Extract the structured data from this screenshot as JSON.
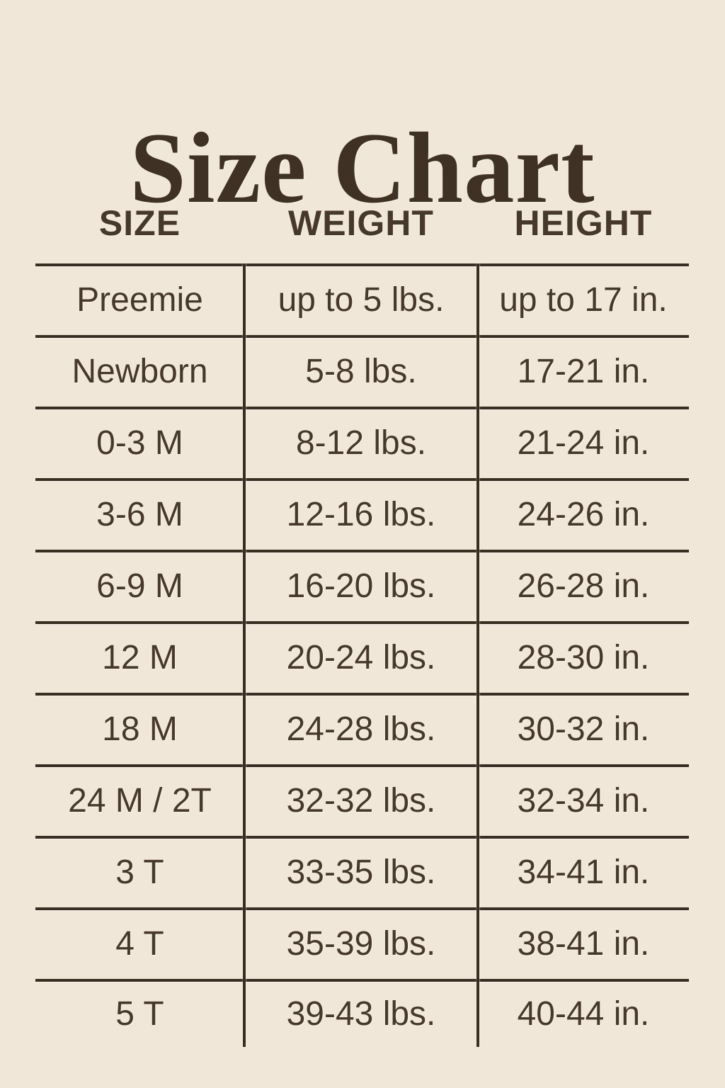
{
  "colors": {
    "background": "#f1e7d8",
    "text": "#46382a",
    "title": "#3f3124",
    "line": "#3a2d21"
  },
  "chart_data": {
    "type": "table",
    "title": "Size Chart",
    "columns": [
      "SIZE",
      "WEIGHT",
      "HEIGHT"
    ],
    "rows": [
      [
        "Preemie",
        "up to 5 lbs.",
        "up to 17 in."
      ],
      [
        "Newborn",
        "5-8 lbs.",
        "17-21 in."
      ],
      [
        "0-3 M",
        "8-12 lbs.",
        "21-24 in."
      ],
      [
        "3-6 M",
        "12-16 lbs.",
        "24-26 in."
      ],
      [
        "6-9 M",
        "16-20 lbs.",
        "26-28 in."
      ],
      [
        "12 M",
        "20-24 lbs.",
        "28-30 in."
      ],
      [
        "18 M",
        "24-28 lbs.",
        "30-32 in."
      ],
      [
        "24 M / 2T",
        "32-32 lbs.",
        "32-34 in."
      ],
      [
        "3 T",
        "33-35 lbs.",
        "34-41 in."
      ],
      [
        "4 T",
        "35-39 lbs.",
        "38-41 in."
      ],
      [
        "5 T",
        "39-43 lbs.",
        "40-44 in."
      ]
    ],
    "layout": {
      "grid": "horizontal rules between all rows, vertical dividers between columns, no outer border, no bottom rule",
      "alignment": "all cells centered"
    }
  }
}
